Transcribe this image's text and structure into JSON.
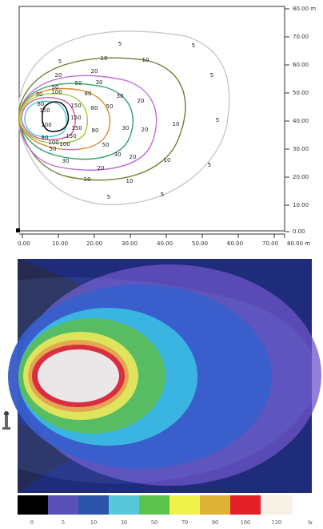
{
  "top_plot": {
    "y_tick_labels": [
      "80.00 m",
      "70.00",
      "60.00",
      "50.00",
      "40.00",
      "30.00",
      "20.00",
      "10.00",
      "0.00"
    ],
    "x_tick_labels": [
      "0.00",
      "10.00",
      "20.00",
      "30.00",
      "40.00",
      "50.00",
      "60.00",
      "70.00",
      "80.00 m"
    ],
    "contours": [
      {
        "level": "5",
        "color": "#c8c8c8"
      },
      {
        "level": "10",
        "color": "#6f7f2f"
      },
      {
        "level": "20",
        "color": "#c06bd8"
      },
      {
        "level": "30",
        "color": "#2ea36a"
      },
      {
        "level": "50",
        "color": "#d78d2a"
      },
      {
        "level": "80",
        "color": "#9bcf3a"
      },
      {
        "level": "100",
        "color": "#c85a9e"
      },
      {
        "level": "150",
        "color": "#45c6d8"
      },
      {
        "level": "200",
        "color": "#111111"
      }
    ],
    "contour_labels": [
      "5",
      "5",
      "5",
      "5",
      "5",
      "5",
      "5",
      "5",
      "10",
      "10",
      "10",
      "10",
      "10",
      "10",
      "20",
      "20",
      "20",
      "20",
      "20",
      "20",
      "30",
      "30",
      "30",
      "30",
      "30",
      "30",
      "50",
      "50",
      "50",
      "50",
      "50",
      "80",
      "80",
      "80",
      "80",
      "80",
      "100",
      "100",
      "100",
      "150",
      "150",
      "150",
      "150",
      "150",
      "200"
    ]
  },
  "heatmap": {
    "colors": {
      "background": "#2a2a2a",
      "deep": "#1f2b7b",
      "blue": "#2f56c5",
      "purple": "#6f55c8",
      "cyan": "#32b8df",
      "green": "#54c04d",
      "yellow": "#ecee47",
      "orange": "#f4a53a",
      "red": "#e61e27",
      "white": "#f9f1e4"
    }
  },
  "legend": {
    "values": [
      "0",
      "5",
      "10",
      "30",
      "50",
      "70",
      "90",
      "100",
      "120"
    ],
    "unit_label": "lx",
    "colors": [
      "#000000",
      "#5b4fb8",
      "#2a54a8",
      "#58c7d7",
      "#5bc34c",
      "#eef24a",
      "#deb236",
      "#e51f26",
      "#f8f1e5"
    ]
  }
}
